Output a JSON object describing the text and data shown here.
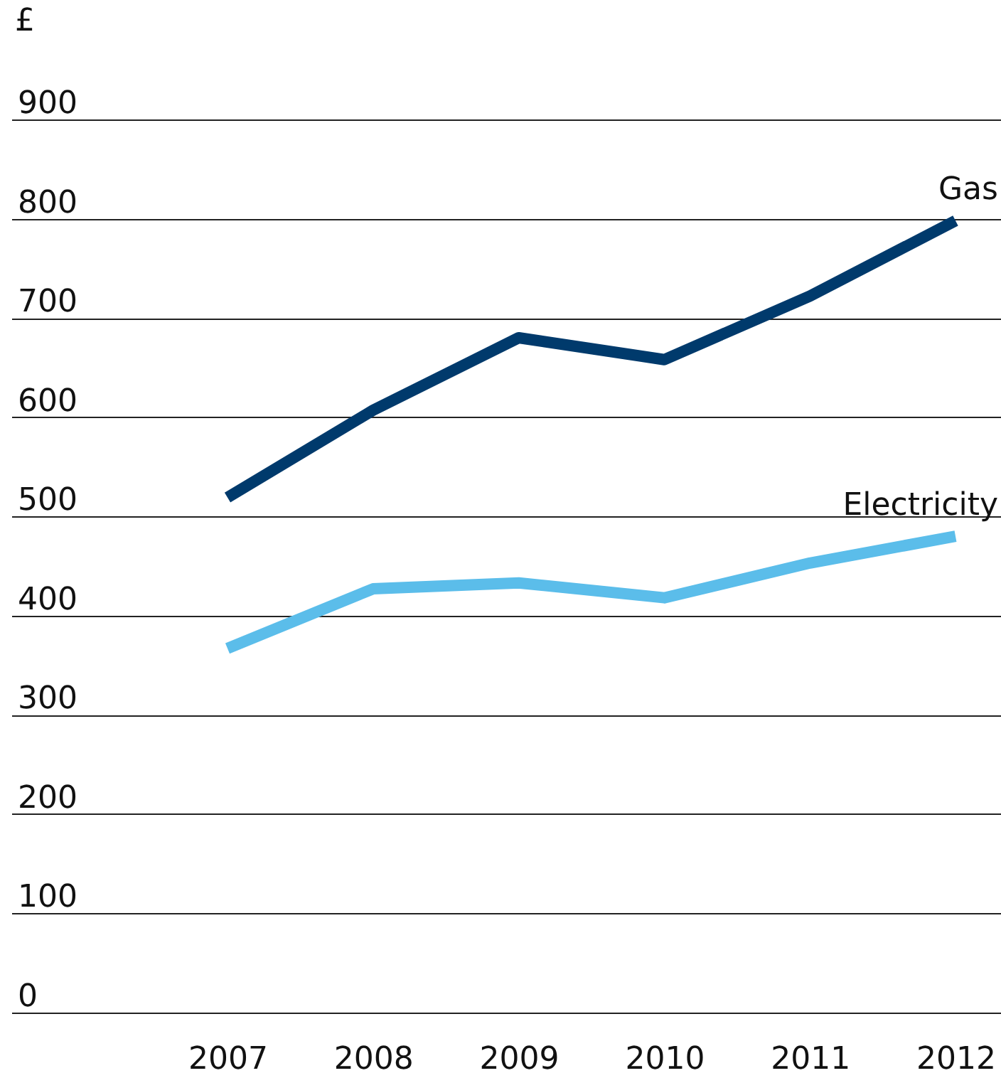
{
  "chart_data": {
    "type": "line",
    "ylabel": "£",
    "categories": [
      "2007",
      "2008",
      "2009",
      "2010",
      "2011",
      "2012"
    ],
    "series": [
      {
        "name": "Gas",
        "color": "#003a6c",
        "values": [
          519,
          607,
          680,
          658,
          722,
          798
        ]
      },
      {
        "name": "Electricity",
        "color": "#5bbdea",
        "values": [
          367,
          427,
          433,
          418,
          453,
          480
        ]
      }
    ],
    "ylim": [
      0,
      900
    ],
    "yticks": [
      0,
      100,
      200,
      300,
      400,
      500,
      600,
      700,
      800,
      900
    ],
    "grid": "y",
    "legend": false,
    "marker": "none",
    "line_style": "solid"
  }
}
